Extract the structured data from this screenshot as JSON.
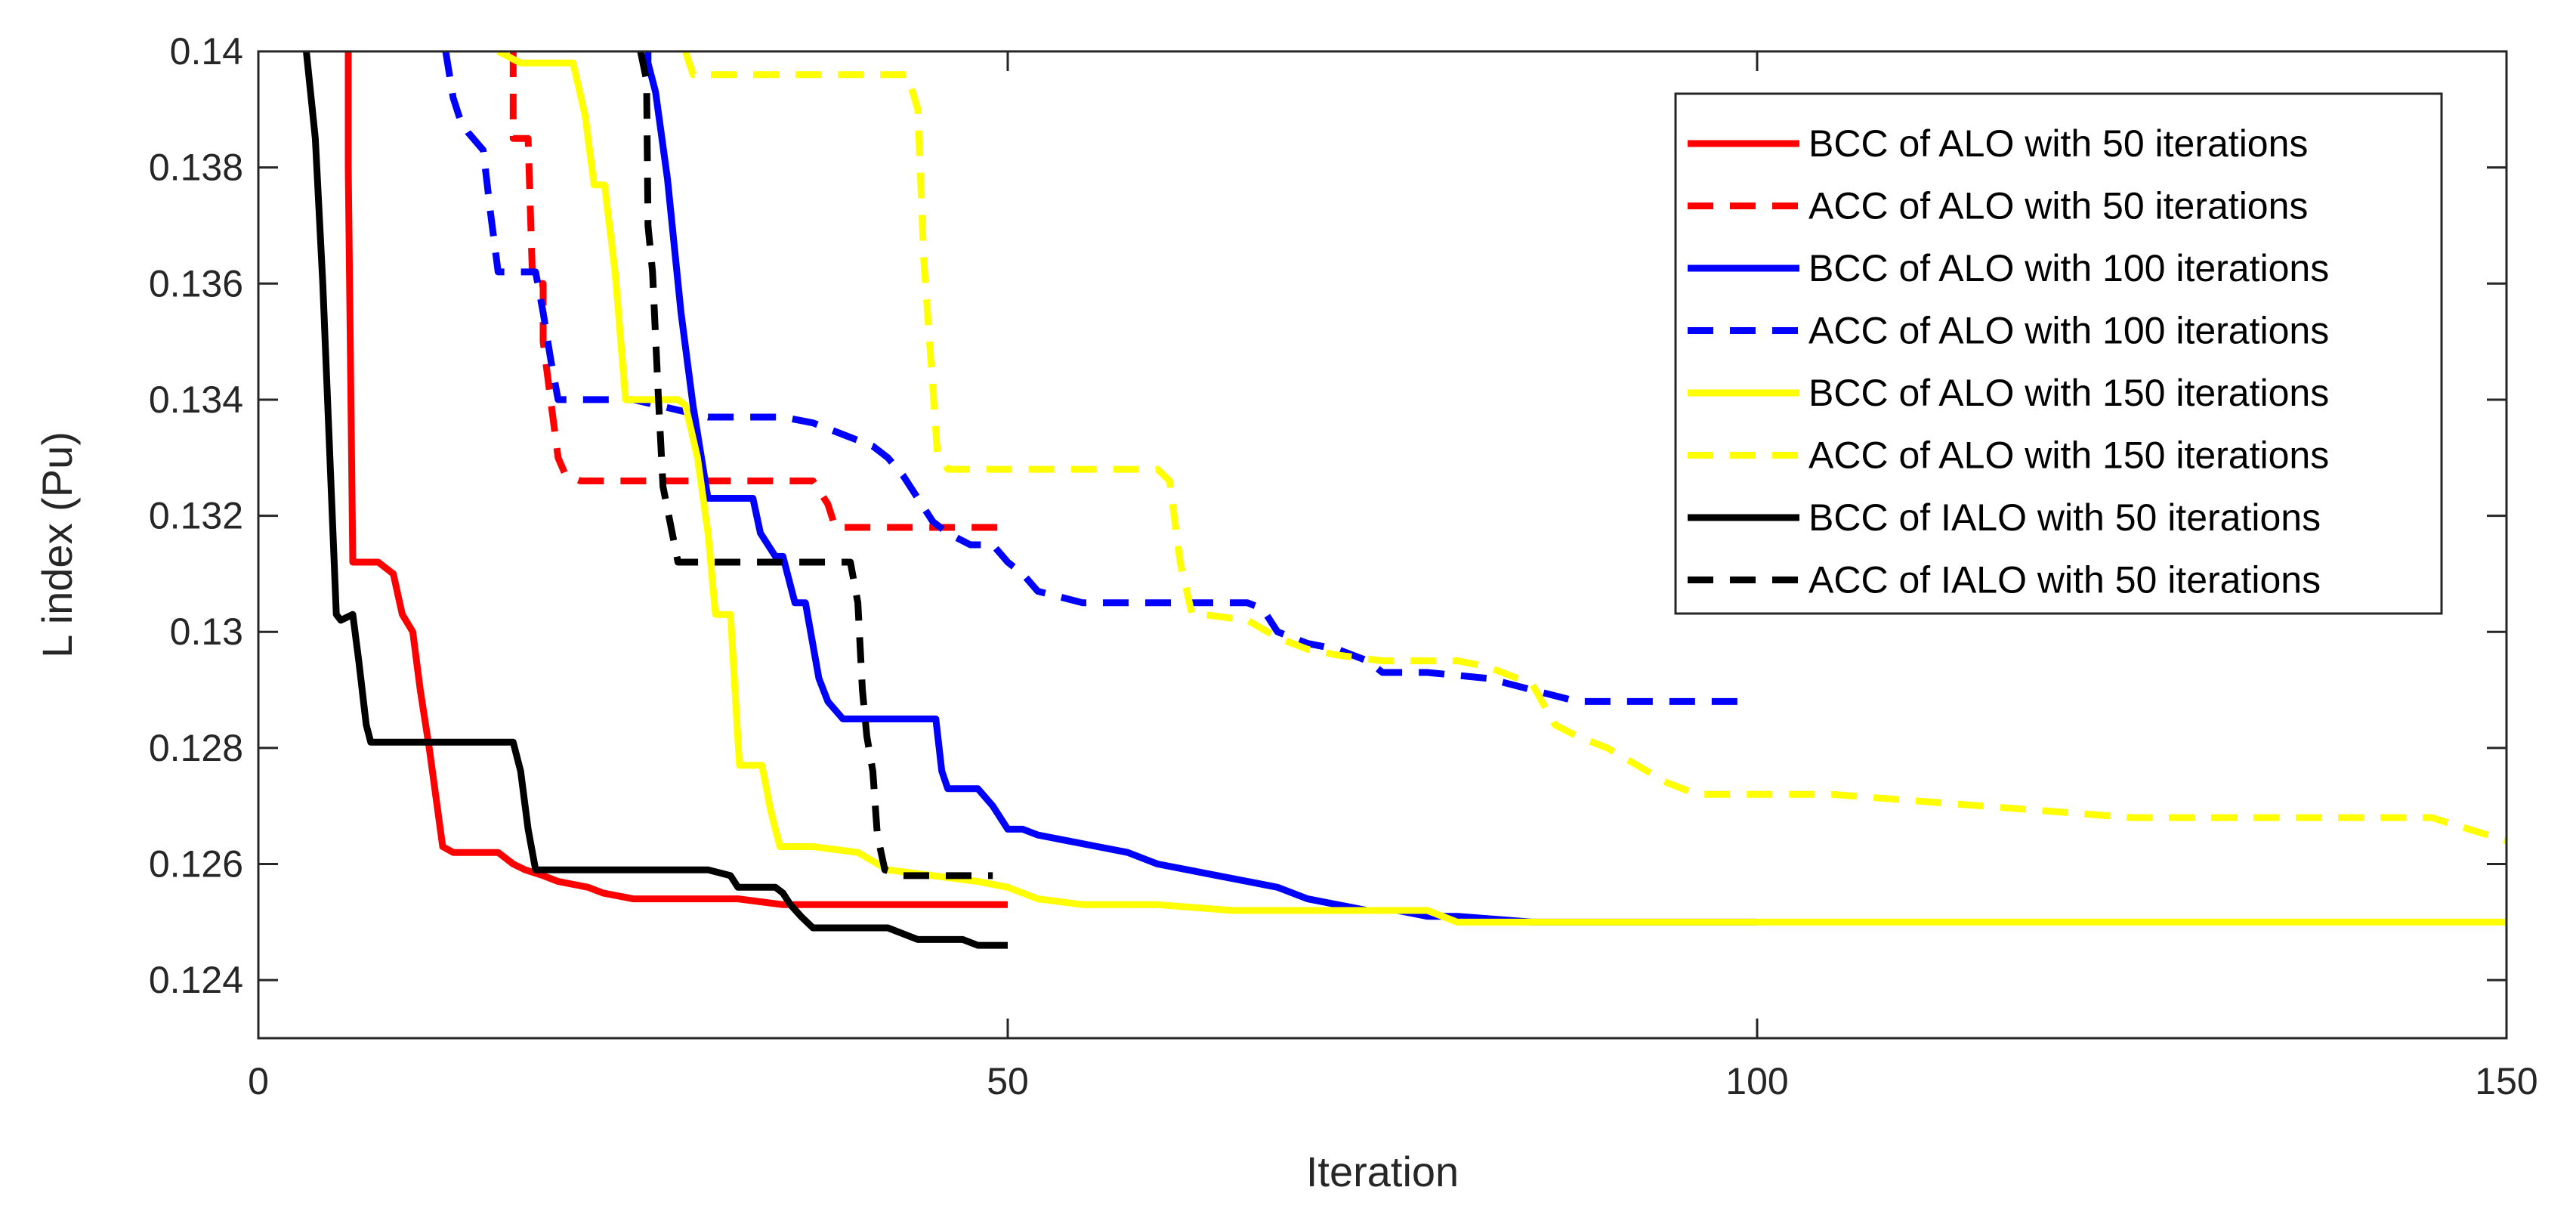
{
  "chart_data": {
    "type": "line",
    "title": "",
    "xlabel": "Iteration",
    "ylabel": "L index (Pu)",
    "xlim": [
      0,
      150
    ],
    "ylim": [
      0.123,
      0.14
    ],
    "xticks": [
      0,
      50,
      100,
      150
    ],
    "xtick_labels": [
      "0",
      "50",
      "100",
      "150"
    ],
    "yticks": [
      0.124,
      0.126,
      0.128,
      0.13,
      0.132,
      0.134,
      0.136,
      0.138,
      0.14
    ],
    "ytick_labels": [
      "0.124",
      "0.126",
      "0.128",
      "0.13",
      "0.132",
      "0.134",
      "0.136",
      "0.138",
      "0.14"
    ],
    "grid": false,
    "legend_position": "top-right",
    "series": [
      {
        "name": "BCC of ALO with 50 iterations",
        "color": "#ff0000",
        "style": "solid",
        "x": [
          6,
          6,
          6.3,
          8,
          9,
          9.6,
          10.3,
          10.8,
          11.4,
          12.3,
          13,
          14,
          16,
          17,
          17.8,
          19,
          20,
          22,
          23,
          25,
          28,
          30,
          32,
          35,
          37,
          40,
          43,
          46,
          50
        ],
        "y": [
          0.14,
          0.138,
          0.1312,
          0.1312,
          0.131,
          0.1303,
          0.13,
          0.129,
          0.128,
          0.1263,
          0.1262,
          0.1262,
          0.1262,
          0.126,
          0.1259,
          0.1258,
          0.1257,
          0.1256,
          0.1255,
          0.1254,
          0.1254,
          0.1254,
          0.1254,
          0.1253,
          0.1253,
          0.1253,
          0.1253,
          0.1253,
          0.1253
        ]
      },
      {
        "name": "ACC of ALO with 50 iterations",
        "color": "#ff0000",
        "style": "dashed",
        "x": [
          17,
          17,
          17.3,
          18,
          18.3,
          19,
          19,
          20,
          20.5,
          21.5,
          25,
          30,
          37,
          38,
          38.5,
          40,
          42,
          45,
          50
        ],
        "y": [
          0.14,
          0.1385,
          0.1385,
          0.1385,
          0.136,
          0.136,
          0.135,
          0.133,
          0.1327,
          0.1326,
          0.1326,
          0.1326,
          0.1326,
          0.1322,
          0.1318,
          0.1318,
          0.1318,
          0.1318,
          0.1318
        ]
      },
      {
        "name": "BCC of ALO with 100 iterations",
        "color": "#0000ff",
        "style": "solid",
        "x": [
          26,
          26,
          26.5,
          27.3,
          28.2,
          29,
          30,
          30.5,
          31,
          33,
          33.5,
          34.5,
          35,
          35.8,
          36.5,
          37.4,
          38,
          39,
          41,
          43,
          45.2,
          45.6,
          46,
          48,
          49,
          50,
          51,
          52,
          54,
          56,
          58,
          60,
          62,
          64,
          66,
          68,
          70,
          72,
          74,
          76,
          78,
          80,
          85,
          90,
          95,
          100
        ],
        "y": [
          0.14,
          0.1398,
          0.1393,
          0.1378,
          0.1355,
          0.1339,
          0.1323,
          0.1323,
          0.1323,
          0.1323,
          0.1317,
          0.1313,
          0.1313,
          0.1305,
          0.1305,
          0.1292,
          0.1288,
          0.1285,
          0.1285,
          0.1285,
          0.1285,
          0.1276,
          0.1273,
          0.1273,
          0.127,
          0.1266,
          0.1266,
          0.1265,
          0.1264,
          0.1263,
          0.1262,
          0.126,
          0.1259,
          0.1258,
          0.1257,
          0.1256,
          0.1254,
          0.1253,
          0.1252,
          0.1252,
          0.1251,
          0.1251,
          0.125,
          0.125,
          0.125,
          0.125
        ]
      },
      {
        "name": "ACC of ALO with 100 iterations",
        "color": "#0000ff",
        "style": "dashed",
        "x": [
          12.5,
          13,
          13.5,
          14,
          15,
          15.5,
          16,
          17,
          18.5,
          19,
          19.5,
          20,
          21,
          25,
          30,
          35,
          37,
          39,
          41,
          42,
          43,
          44,
          45,
          46,
          47.5,
          49,
          50,
          51,
          52,
          55,
          60,
          63,
          66,
          67,
          68,
          70,
          72,
          74,
          75,
          78,
          82,
          85,
          88,
          92,
          95,
          99
        ],
        "y": [
          0.14,
          0.1392,
          0.1388,
          0.1386,
          0.1383,
          0.1372,
          0.1362,
          0.1362,
          0.1362,
          0.1355,
          0.1347,
          0.134,
          0.134,
          0.134,
          0.1337,
          0.1337,
          0.1336,
          0.1334,
          0.1332,
          0.133,
          0.1327,
          0.1323,
          0.1319,
          0.1317,
          0.1315,
          0.1315,
          0.1312,
          0.131,
          0.1307,
          0.1305,
          0.1305,
          0.1305,
          0.1305,
          0.1304,
          0.13,
          0.1298,
          0.1297,
          0.1295,
          0.1293,
          0.1293,
          0.1292,
          0.129,
          0.1288,
          0.1288,
          0.1288,
          0.1288
        ]
      },
      {
        "name": "BCC of ALO with 150 iterations",
        "color": "#ffff00",
        "style": "solid",
        "x": [
          16,
          17.5,
          18.5,
          20,
          21,
          21.8,
          22.4,
          23.1,
          23.8,
          24.5,
          25,
          26,
          28,
          28.5,
          29.3,
          30,
          30.5,
          31.5,
          31.8,
          32.1,
          33,
          33.6,
          34.2,
          34.8,
          35.5,
          37,
          40,
          42,
          45,
          48,
          50,
          52,
          55,
          60,
          65,
          70,
          75,
          78,
          80,
          85,
          90,
          100,
          110,
          120,
          130,
          140,
          150
        ],
        "y": [
          0.14,
          0.1398,
          0.1398,
          0.1398,
          0.1398,
          0.1389,
          0.1377,
          0.1377,
          0.1362,
          0.134,
          0.134,
          0.134,
          0.134,
          0.1339,
          0.133,
          0.1317,
          0.1303,
          0.1303,
          0.129,
          0.1277,
          0.1277,
          0.1277,
          0.1269,
          0.1263,
          0.1263,
          0.1263,
          0.1262,
          0.1259,
          0.1258,
          0.1257,
          0.1256,
          0.1254,
          0.1253,
          0.1253,
          0.1252,
          0.1252,
          0.1252,
          0.1252,
          0.125,
          0.125,
          0.125,
          0.125,
          0.125,
          0.125,
          0.125,
          0.125,
          0.125
        ]
      },
      {
        "name": "ACC of ALO with 150 iterations",
        "color": "#ffff00",
        "style": "dashed",
        "x": [
          28.5,
          29,
          30,
          35,
          40,
          43.3,
          44,
          44.4,
          45.3,
          46,
          50,
          55,
          60,
          60.8,
          61.5,
          62.3,
          63,
          66,
          68,
          70,
          72,
          75,
          78,
          80,
          82,
          85,
          86.5,
          88,
          90,
          92,
          94,
          96,
          100,
          105,
          110,
          115,
          120,
          125,
          130,
          135,
          140,
          145,
          150
        ],
        "y": [
          0.14,
          0.1396,
          0.1396,
          0.1396,
          0.1396,
          0.1396,
          0.139,
          0.1364,
          0.1331,
          0.1328,
          0.1328,
          0.1328,
          0.1328,
          0.1326,
          0.1312,
          0.1303,
          0.1303,
          0.1302,
          0.1299,
          0.1297,
          0.1296,
          0.1295,
          0.1295,
          0.1295,
          0.1294,
          0.1291,
          0.1284,
          0.1282,
          0.128,
          0.1277,
          0.1274,
          0.1272,
          0.1272,
          0.1272,
          0.1271,
          0.127,
          0.1269,
          0.1268,
          0.1268,
          0.1268,
          0.1268,
          0.1268,
          0.1264
        ]
      },
      {
        "name": "BCC of IALO with 50 iterations",
        "color": "#000000",
        "style": "solid",
        "x": [
          3.2,
          3.8,
          4.3,
          5.2,
          5.5,
          6.3,
          6.7,
          7.2,
          7.5,
          9,
          12,
          15,
          17,
          17.5,
          18,
          18.5,
          20,
          25,
          30,
          31.5,
          32,
          33,
          34.5,
          35,
          35.5,
          36.2,
          37,
          38,
          40,
          42,
          43,
          44,
          46,
          47,
          48,
          49,
          50
        ],
        "y": [
          0.14,
          0.1385,
          0.136,
          0.1303,
          0.1302,
          0.1303,
          0.1295,
          0.1284,
          0.1281,
          0.1281,
          0.1281,
          0.1281,
          0.1281,
          0.1276,
          0.1266,
          0.1259,
          0.1259,
          0.1259,
          0.1259,
          0.1258,
          0.1256,
          0.1256,
          0.1256,
          0.1255,
          0.1253,
          0.1251,
          0.1249,
          0.1249,
          0.1249,
          0.1249,
          0.1248,
          0.1247,
          0.1247,
          0.1247,
          0.1246,
          0.1246,
          0.1246
        ]
      },
      {
        "name": "ACC of IALO with 50 iterations",
        "color": "#000000",
        "style": "dashed",
        "x": [
          25.5,
          25.9,
          26,
          26.3,
          26.7,
          27,
          28,
          30,
          33,
          36,
          37,
          38,
          39.5,
          40,
          40.3,
          40.6,
          41,
          41.3,
          41.8,
          43,
          45,
          47,
          49
        ],
        "y": [
          0.14,
          0.1395,
          0.137,
          0.1362,
          0.134,
          0.1325,
          0.1312,
          0.1312,
          0.1312,
          0.1312,
          0.1312,
          0.1312,
          0.1312,
          0.1305,
          0.129,
          0.1282,
          0.1276,
          0.1265,
          0.1259,
          0.1258,
          0.1258,
          0.1258,
          0.1258
        ]
      }
    ]
  }
}
